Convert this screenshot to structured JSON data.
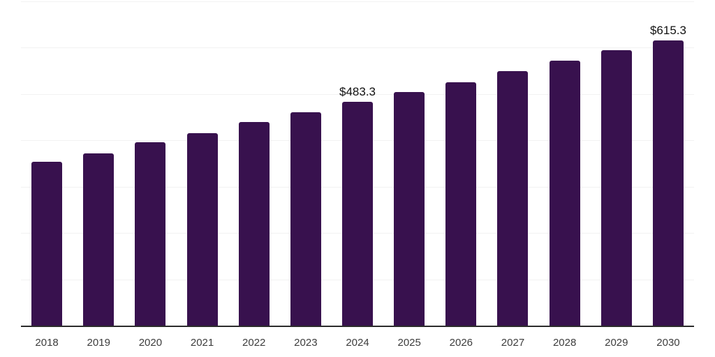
{
  "chart_data": {
    "type": "bar",
    "title": "",
    "xlabel": "",
    "ylabel": "",
    "categories": [
      "2018",
      "2019",
      "2020",
      "2021",
      "2022",
      "2023",
      "2024",
      "2025",
      "2026",
      "2027",
      "2028",
      "2029",
      "2030"
    ],
    "values": [
      354,
      372,
      396,
      416,
      439,
      461,
      483.3,
      504,
      525,
      549,
      572,
      595,
      615.3
    ],
    "value_labels": [
      "",
      "",
      "",
      "",
      "",
      "",
      "$483.3",
      "",
      "",
      "",
      "",
      "",
      "$615.3"
    ],
    "ylim": [
      0,
      700
    ],
    "gridline_step": 100,
    "grid": "horizontal",
    "legend": "none",
    "bar_color": "#38114E",
    "gridline_color": "#F2F2F2",
    "axis_color": "#2B2B2B",
    "tick_label_color": "#3D3D3D",
    "value_label_color": "#111111"
  }
}
